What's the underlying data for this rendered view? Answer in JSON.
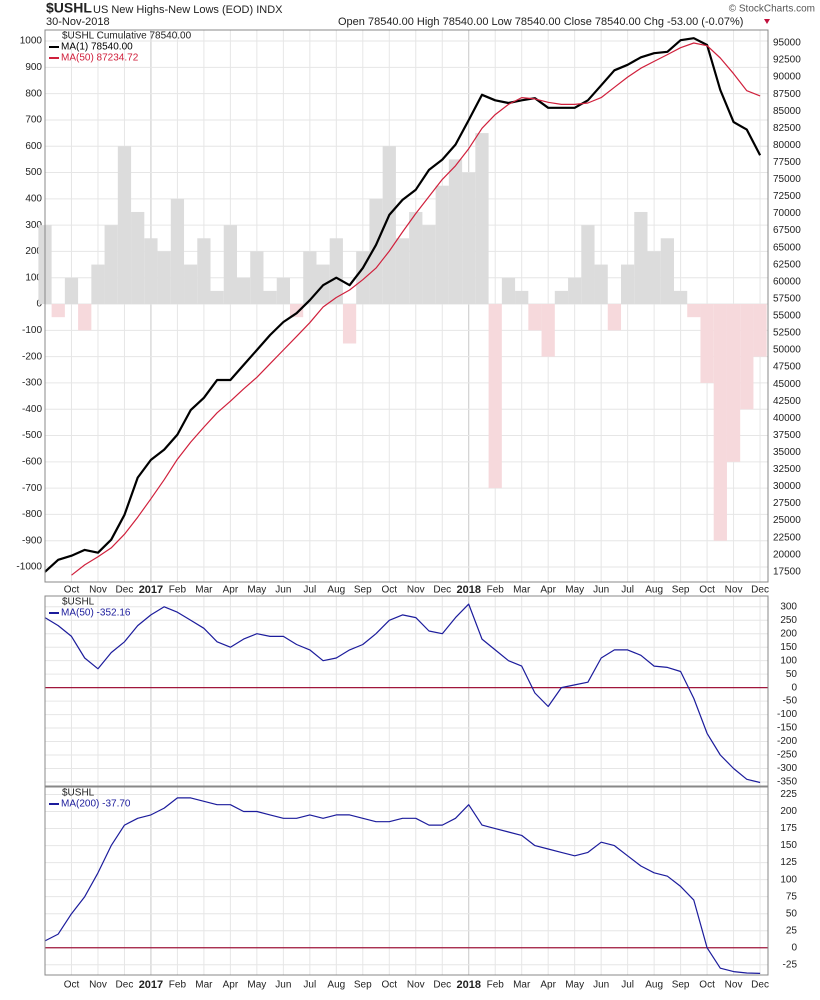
{
  "header": {
    "symbol": "$USHL",
    "title": "US New Highs-New Lows (EOD) INDX",
    "date": "30-Nov-2018",
    "quote": "Open 78540.00  High 78540.00  Low 78540.00  Close 78540.00  Chg -53.00 (-0.07%)",
    "credit": "© StockCharts.com"
  },
  "chart_data": [
    {
      "type": "combo",
      "legend_title": "$USHL Cumulative 78540.00",
      "x": [
        -1,
        -0.5,
        0,
        0.5,
        1,
        1.5,
        2,
        2.5,
        3,
        3.5,
        4,
        4.5,
        5,
        5.5,
        6,
        6.5,
        7,
        7.5,
        8,
        8.5,
        9,
        9.5,
        10,
        10.5,
        11,
        11.5,
        12,
        12.5,
        13,
        13.5,
        14,
        14.5,
        15,
        15.5,
        16,
        16.5,
        17,
        17.5,
        18,
        18.5,
        19,
        19.5,
        20,
        20.5,
        21,
        21.5,
        22,
        22.5,
        23,
        23.5,
        24,
        24.5,
        25,
        25.5,
        26
      ],
      "xlim": [
        -1,
        26.3
      ],
      "xticks": [
        {
          "value": 0,
          "label": "Oct"
        },
        {
          "value": 1,
          "label": "Nov"
        },
        {
          "value": 2,
          "label": "Dec"
        },
        {
          "value": 3,
          "label": "2017"
        },
        {
          "value": 4,
          "label": "Feb"
        },
        {
          "value": 5,
          "label": "Mar"
        },
        {
          "value": 6,
          "label": "Apr"
        },
        {
          "value": 7,
          "label": "May"
        },
        {
          "value": 8,
          "label": "Jun"
        },
        {
          "value": 9,
          "label": "Jul"
        },
        {
          "value": 10,
          "label": "Aug"
        },
        {
          "value": 11,
          "label": "Sep"
        },
        {
          "value": 12,
          "label": "Oct"
        },
        {
          "value": 13,
          "label": "Nov"
        },
        {
          "value": 14,
          "label": "Dec"
        },
        {
          "value": 15,
          "label": "2018"
        },
        {
          "value": 16,
          "label": "Feb"
        },
        {
          "value": 17,
          "label": "Mar"
        },
        {
          "value": 18,
          "label": "Apr"
        },
        {
          "value": 19,
          "label": "May"
        },
        {
          "value": 20,
          "label": "Jun"
        },
        {
          "value": 21,
          "label": "Jul"
        },
        {
          "value": 22,
          "label": "Aug"
        },
        {
          "value": 23,
          "label": "Sep"
        },
        {
          "value": 24,
          "label": "Oct"
        },
        {
          "value": 25,
          "label": "Nov"
        },
        {
          "value": 26,
          "label": "Dec"
        }
      ],
      "ylim": [
        -1057,
        1042
      ],
      "yticks": [
        -1000,
        -900,
        -800,
        -700,
        -600,
        -500,
        -400,
        -300,
        -200,
        -100,
        0,
        100,
        200,
        300,
        400,
        500,
        600,
        700,
        800,
        900,
        1000
      ],
      "y2lim": [
        16000,
        96900
      ],
      "y2ticks": [
        17500,
        20000,
        22500,
        25000,
        27500,
        30000,
        32500,
        35000,
        37500,
        40000,
        42500,
        45000,
        47500,
        50000,
        52500,
        55000,
        57500,
        60000,
        62500,
        65000,
        67500,
        70000,
        72500,
        75000,
        77500,
        80000,
        82500,
        85000,
        87500,
        90000,
        92500,
        95000
      ],
      "grid": true,
      "histogram": {
        "pos_color": "#dcdcdc",
        "neg_color": "#f6d9dc",
        "values": [
          300,
          -50,
          100,
          -100,
          150,
          300,
          600,
          350,
          250,
          200,
          400,
          150,
          250,
          50,
          300,
          100,
          200,
          50,
          100,
          -50,
          200,
          150,
          250,
          -150,
          200,
          400,
          600,
          250,
          350,
          300,
          450,
          550,
          500,
          650,
          -700,
          100,
          50,
          -100,
          -200,
          50,
          100,
          300,
          150,
          -100,
          150,
          350,
          200,
          250,
          50,
          -50,
          -300,
          -900,
          -600,
          -400,
          -200
        ]
      },
      "series": [
        {
          "name": "MA(1) 78540.00",
          "color": "#000000",
          "axis": "y2",
          "width": 2.2,
          "values": [
            17500,
            19260,
            19850,
            20700,
            20300,
            22200,
            25850,
            31300,
            33900,
            35400,
            37600,
            41200,
            43000,
            45600,
            45600,
            47800,
            50000,
            52200,
            54100,
            55400,
            57300,
            59500,
            60600,
            59500,
            62000,
            65400,
            69800,
            72000,
            73500,
            76400,
            77900,
            80100,
            83700,
            87400,
            86600,
            86200,
            86600,
            86900,
            85500,
            85500,
            85500,
            86600,
            88800,
            91000,
            91800,
            92900,
            93500,
            93700,
            95400,
            95700,
            94700,
            88100,
            83400,
            82300,
            78540
          ]
        },
        {
          "name": "MA(50) 87234.72",
          "color": "#d0203c",
          "axis": "y2",
          "width": 1.2,
          "values": [
            null,
            null,
            17000,
            18500,
            19700,
            21000,
            23000,
            25500,
            28200,
            31000,
            34000,
            36500,
            38700,
            40800,
            42500,
            44300,
            46000,
            48000,
            50000,
            52000,
            54000,
            56300,
            57700,
            58800,
            60300,
            62000,
            64500,
            67300,
            70000,
            72500,
            75000,
            77000,
            79500,
            82500,
            84500,
            86000,
            87000,
            86800,
            86300,
            86000,
            86000,
            86200,
            87000,
            88500,
            90000,
            91300,
            92300,
            93300,
            94300,
            95000,
            94600,
            92800,
            90500,
            88000,
            87234.72
          ]
        }
      ]
    },
    {
      "type": "line",
      "legend_title": "$USHL",
      "zero_color": "#a0163c",
      "x": [
        -1,
        -0.5,
        0,
        0.5,
        1,
        1.5,
        2,
        2.5,
        3,
        3.5,
        4,
        4.5,
        5,
        5.5,
        6,
        6.5,
        7,
        7.5,
        8,
        8.5,
        9,
        9.5,
        10,
        10.5,
        11,
        11.5,
        12,
        12.5,
        13,
        13.5,
        14,
        14.5,
        15,
        15.5,
        16,
        16.5,
        17,
        17.5,
        18,
        18.5,
        19,
        19.5,
        20,
        20.5,
        21,
        21.5,
        22,
        22.5,
        23,
        23.5,
        24,
        24.5,
        25,
        25.5,
        26
      ],
      "xlim": [
        -1,
        26.3
      ],
      "ylim": [
        -365,
        340
      ],
      "yticks": [
        -350,
        -300,
        -250,
        -200,
        -150,
        -100,
        -50,
        0,
        50,
        100,
        150,
        200,
        250,
        300
      ],
      "grid": true,
      "series": [
        {
          "name": "MA(50) -352.16",
          "color": "#1c1c9c",
          "width": 1.2,
          "values": [
            260,
            230,
            190,
            110,
            70,
            130,
            170,
            230,
            270,
            300,
            280,
            250,
            220,
            170,
            150,
            180,
            200,
            190,
            190,
            160,
            140,
            100,
            110,
            140,
            160,
            200,
            250,
            270,
            260,
            210,
            200,
            260,
            310,
            180,
            140,
            100,
            80,
            -20,
            -70,
            0,
            10,
            20,
            110,
            140,
            140,
            120,
            80,
            75,
            60,
            -40,
            -170,
            -250,
            -300,
            -340,
            -352.16
          ]
        }
      ]
    },
    {
      "type": "line",
      "legend_title": "$USHL",
      "zero_color": "#a0163c",
      "x": [
        -1,
        -0.5,
        0,
        0.5,
        1,
        1.5,
        2,
        2.5,
        3,
        3.5,
        4,
        4.5,
        5,
        5.5,
        6,
        6.5,
        7,
        7.5,
        8,
        8.5,
        9,
        9.5,
        10,
        10.5,
        11,
        11.5,
        12,
        12.5,
        13,
        13.5,
        14,
        14.5,
        15,
        15.5,
        16,
        16.5,
        17,
        17.5,
        18,
        18.5,
        19,
        19.5,
        20,
        20.5,
        21,
        21.5,
        22,
        22.5,
        23,
        23.5,
        24,
        24.5,
        25,
        25.5,
        26
      ],
      "xlim": [
        -1,
        26.3
      ],
      "xticks": [
        {
          "value": 0,
          "label": "Oct"
        },
        {
          "value": 1,
          "label": "Nov"
        },
        {
          "value": 2,
          "label": "Dec"
        },
        {
          "value": 3,
          "label": "2017"
        },
        {
          "value": 4,
          "label": "Feb"
        },
        {
          "value": 5,
          "label": "Mar"
        },
        {
          "value": 6,
          "label": "Apr"
        },
        {
          "value": 7,
          "label": "May"
        },
        {
          "value": 8,
          "label": "Jun"
        },
        {
          "value": 9,
          "label": "Jul"
        },
        {
          "value": 10,
          "label": "Aug"
        },
        {
          "value": 11,
          "label": "Sep"
        },
        {
          "value": 12,
          "label": "Oct"
        },
        {
          "value": 13,
          "label": "Nov"
        },
        {
          "value": 14,
          "label": "Dec"
        },
        {
          "value": 15,
          "label": "2018"
        },
        {
          "value": 16,
          "label": "Feb"
        },
        {
          "value": 17,
          "label": "Mar"
        },
        {
          "value": 18,
          "label": "Apr"
        },
        {
          "value": 19,
          "label": "May"
        },
        {
          "value": 20,
          "label": "Jun"
        },
        {
          "value": 21,
          "label": "Jul"
        },
        {
          "value": 22,
          "label": "Aug"
        },
        {
          "value": 23,
          "label": "Sep"
        },
        {
          "value": 24,
          "label": "Oct"
        },
        {
          "value": 25,
          "label": "Nov"
        },
        {
          "value": 26,
          "label": "Dec"
        }
      ],
      "ylim": [
        -40,
        236
      ],
      "yticks": [
        -25,
        0,
        25,
        50,
        75,
        100,
        125,
        150,
        175,
        200,
        225
      ],
      "grid": true,
      "series": [
        {
          "name": "MA(200) -37.70",
          "color": "#1c1c9c",
          "width": 1.2,
          "values": [
            10,
            20,
            50,
            75,
            110,
            150,
            180,
            190,
            195,
            205,
            220,
            220,
            215,
            210,
            210,
            200,
            200,
            195,
            190,
            190,
            195,
            190,
            195,
            195,
            190,
            185,
            185,
            190,
            190,
            180,
            180,
            190,
            210,
            180,
            175,
            170,
            165,
            150,
            145,
            140,
            135,
            140,
            155,
            150,
            135,
            120,
            110,
            105,
            90,
            70,
            0,
            -30,
            -35,
            -37,
            -37.7
          ]
        }
      ]
    }
  ]
}
